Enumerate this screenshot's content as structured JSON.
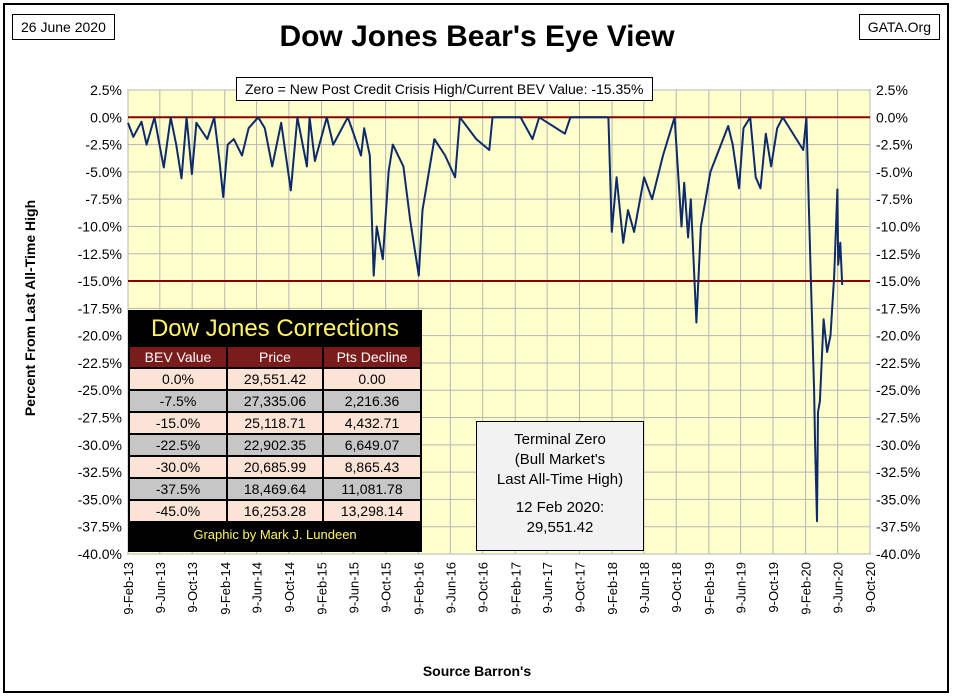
{
  "header": {
    "date": "26 June 2020",
    "source_site": "GATA.Org",
    "title": "Dow Jones Bear's Eye View",
    "zero_note": "Zero = New Post Credit Crisis High/Current BEV Value:  -15.35%"
  },
  "chart_data": {
    "type": "line",
    "title": "Dow Jones Bear's Eye View",
    "xlabel": "Source Barron's",
    "ylabel": "Percent From Last All-Time High",
    "ylim": [
      -40.0,
      2.5
    ],
    "y_ticks": [
      "2.5%",
      "0.0%",
      "-2.5%",
      "-5.0%",
      "-7.5%",
      "-10.0%",
      "-12.5%",
      "-15.0%",
      "-17.5%",
      "-20.0%",
      "-22.5%",
      "-25.0%",
      "-27.5%",
      "-30.0%",
      "-32.5%",
      "-35.0%",
      "-37.5%",
      "-40.0%"
    ],
    "x_ticks": [
      "9-Feb-13",
      "9-Jun-13",
      "9-Oct-13",
      "9-Feb-14",
      "9-Jun-14",
      "9-Oct-14",
      "9-Feb-15",
      "9-Jun-15",
      "9-Oct-15",
      "9-Feb-16",
      "9-Jun-16",
      "9-Oct-16",
      "9-Feb-17",
      "9-Jun-17",
      "9-Oct-17",
      "9-Feb-18",
      "9-Jun-18",
      "9-Oct-18",
      "9-Feb-19",
      "9-Jun-19",
      "9-Oct-19",
      "9-Feb-20",
      "9-Jun-20",
      "9-Oct-20"
    ],
    "reference_lines": [
      0.0,
      -15.0
    ],
    "grid": true,
    "background": "#ffffcc",
    "line_color": "#0d2a6b",
    "ref_line_color": "#8b0000",
    "series": [
      {
        "values": [
          {
            "x": "2013-02-09",
            "y": -0.5
          },
          {
            "x": "2013-03-01",
            "y": -1.8
          },
          {
            "x": "2013-04-01",
            "y": -0.4
          },
          {
            "x": "2013-04-20",
            "y": -2.5
          },
          {
            "x": "2013-05-20",
            "y": 0.0
          },
          {
            "x": "2013-06-10",
            "y": -2.8
          },
          {
            "x": "2013-06-24",
            "y": -4.6
          },
          {
            "x": "2013-07-20",
            "y": 0.0
          },
          {
            "x": "2013-08-10",
            "y": -2.5
          },
          {
            "x": "2013-08-30",
            "y": -5.6
          },
          {
            "x": "2013-09-18",
            "y": 0.0
          },
          {
            "x": "2013-10-08",
            "y": -5.2
          },
          {
            "x": "2013-10-25",
            "y": -0.5
          },
          {
            "x": "2013-12-05",
            "y": -2.0
          },
          {
            "x": "2013-12-31",
            "y": 0.0
          },
          {
            "x": "2014-01-20",
            "y": -4.0
          },
          {
            "x": "2014-02-03",
            "y": -7.3
          },
          {
            "x": "2014-02-20",
            "y": -2.5
          },
          {
            "x": "2014-03-15",
            "y": -2.0
          },
          {
            "x": "2014-04-15",
            "y": -3.5
          },
          {
            "x": "2014-05-10",
            "y": -1.0
          },
          {
            "x": "2014-06-15",
            "y": 0.0
          },
          {
            "x": "2014-07-10",
            "y": -1.0
          },
          {
            "x": "2014-08-07",
            "y": -4.5
          },
          {
            "x": "2014-09-10",
            "y": -0.5
          },
          {
            "x": "2014-10-16",
            "y": -6.7
          },
          {
            "x": "2014-11-10",
            "y": 0.0
          },
          {
            "x": "2014-12-16",
            "y": -4.5
          },
          {
            "x": "2014-12-26",
            "y": 0.0
          },
          {
            "x": "2015-01-15",
            "y": -4.0
          },
          {
            "x": "2015-03-01",
            "y": 0.0
          },
          {
            "x": "2015-03-25",
            "y": -2.5
          },
          {
            "x": "2015-05-19",
            "y": 0.0
          },
          {
            "x": "2015-06-10",
            "y": -1.5
          },
          {
            "x": "2015-07-08",
            "y": -3.5
          },
          {
            "x": "2015-07-20",
            "y": -1.0
          },
          {
            "x": "2015-08-10",
            "y": -3.5
          },
          {
            "x": "2015-08-25",
            "y": -14.5
          },
          {
            "x": "2015-09-05",
            "y": -10.0
          },
          {
            "x": "2015-09-28",
            "y": -13.0
          },
          {
            "x": "2015-10-20",
            "y": -5.0
          },
          {
            "x": "2015-11-05",
            "y": -2.5
          },
          {
            "x": "2015-12-15",
            "y": -4.5
          },
          {
            "x": "2016-01-10",
            "y": -9.5
          },
          {
            "x": "2016-02-11",
            "y": -14.5
          },
          {
            "x": "2016-02-25",
            "y": -8.5
          },
          {
            "x": "2016-04-10",
            "y": -2.0
          },
          {
            "x": "2016-05-20",
            "y": -3.5
          },
          {
            "x": "2016-06-27",
            "y": -5.5
          },
          {
            "x": "2016-07-15",
            "y": 0.0
          },
          {
            "x": "2016-09-15",
            "y": -2.0
          },
          {
            "x": "2016-11-03",
            "y": -3.0
          },
          {
            "x": "2016-11-15",
            "y": 0.0
          },
          {
            "x": "2017-03-01",
            "y": 0.0
          },
          {
            "x": "2017-04-15",
            "y": -2.0
          },
          {
            "x": "2017-05-10",
            "y": 0.0
          },
          {
            "x": "2017-08-15",
            "y": -1.5
          },
          {
            "x": "2017-09-05",
            "y": 0.0
          },
          {
            "x": "2018-01-26",
            "y": 0.0
          },
          {
            "x": "2018-02-08",
            "y": -10.5
          },
          {
            "x": "2018-02-26",
            "y": -5.5
          },
          {
            "x": "2018-03-23",
            "y": -11.5
          },
          {
            "x": "2018-04-10",
            "y": -8.5
          },
          {
            "x": "2018-05-03",
            "y": -10.5
          },
          {
            "x": "2018-06-10",
            "y": -5.5
          },
          {
            "x": "2018-07-10",
            "y": -7.5
          },
          {
            "x": "2018-08-20",
            "y": -3.5
          },
          {
            "x": "2018-10-03",
            "y": 0.0
          },
          {
            "x": "2018-10-29",
            "y": -10.0
          },
          {
            "x": "2018-11-08",
            "y": -6.0
          },
          {
            "x": "2018-11-23",
            "y": -11.0
          },
          {
            "x": "2018-12-03",
            "y": -7.5
          },
          {
            "x": "2018-12-24",
            "y": -18.8
          },
          {
            "x": "2019-01-10",
            "y": -10.0
          },
          {
            "x": "2019-02-15",
            "y": -5.0
          },
          {
            "x": "2019-04-23",
            "y": -0.8
          },
          {
            "x": "2019-05-10",
            "y": -2.5
          },
          {
            "x": "2019-06-03",
            "y": -6.5
          },
          {
            "x": "2019-06-20",
            "y": -1.0
          },
          {
            "x": "2019-07-15",
            "y": 0.0
          },
          {
            "x": "2019-08-05",
            "y": -5.5
          },
          {
            "x": "2019-08-23",
            "y": -6.5
          },
          {
            "x": "2019-09-12",
            "y": -1.5
          },
          {
            "x": "2019-10-02",
            "y": -4.5
          },
          {
            "x": "2019-10-25",
            "y": -1.0
          },
          {
            "x": "2019-11-15",
            "y": 0.0
          },
          {
            "x": "2020-01-31",
            "y": -3.0
          },
          {
            "x": "2020-02-12",
            "y": 0.0
          },
          {
            "x": "2020-02-28",
            "y": -14.0
          },
          {
            "x": "2020-03-12",
            "y": -25.0
          },
          {
            "x": "2020-03-16",
            "y": -30.0
          },
          {
            "x": "2020-03-23",
            "y": -37.0
          },
          {
            "x": "2020-03-27",
            "y": -27.0
          },
          {
            "x": "2020-04-03",
            "y": -26.0
          },
          {
            "x": "2020-04-17",
            "y": -18.5
          },
          {
            "x": "2020-04-30",
            "y": -21.5
          },
          {
            "x": "2020-05-13",
            "y": -20.0
          },
          {
            "x": "2020-05-27",
            "y": -14.5
          },
          {
            "x": "2020-06-08",
            "y": -6.6
          },
          {
            "x": "2020-06-11",
            "y": -13.5
          },
          {
            "x": "2020-06-19",
            "y": -11.5
          },
          {
            "x": "2020-06-26",
            "y": -15.35
          }
        ]
      }
    ]
  },
  "corrections": {
    "title": "Dow Jones Corrections",
    "headers": [
      "BEV Value",
      "Price",
      "Pts Decline"
    ],
    "rows": [
      [
        "0.0%",
        "29,551.42",
        "0.00"
      ],
      [
        "-7.5%",
        "27,335.06",
        "2,216.36"
      ],
      [
        "-15.0%",
        "25,118.71",
        "4,432.71"
      ],
      [
        "-22.5%",
        "22,902.35",
        "6,649.07"
      ],
      [
        "-30.0%",
        "20,685.99",
        "8,865.43"
      ],
      [
        "-37.5%",
        "18,469.64",
        "11,081.78"
      ],
      [
        "-45.0%",
        "16,253.28",
        "13,298.14"
      ]
    ],
    "credit": "Graphic by Mark J. Lundeen"
  },
  "terminal_zero": {
    "line1": "Terminal Zero",
    "line2": "(Bull Market's",
    "line3": "Last All-Time High)",
    "date": "12 Feb 2020:",
    "value": "29,551.42"
  }
}
